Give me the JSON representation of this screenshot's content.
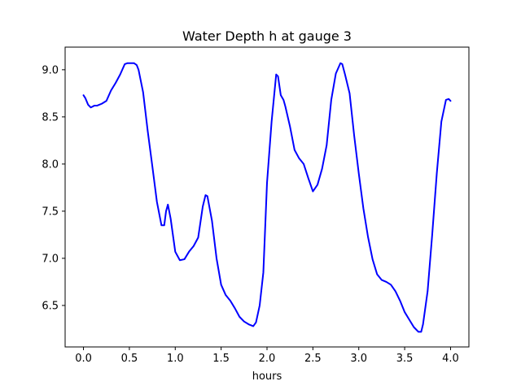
{
  "chart_data": {
    "type": "line",
    "title": "Water Depth h at gauge 3",
    "xlabel": "hours",
    "ylabel": "",
    "xlim": [
      -0.2,
      4.2
    ],
    "ylim": [
      6.06,
      9.24
    ],
    "xticks": [
      0.0,
      0.5,
      1.0,
      1.5,
      2.0,
      2.5,
      3.0,
      3.5,
      4.0
    ],
    "xtick_labels": [
      "0.0",
      "0.5",
      "1.0",
      "1.5",
      "2.0",
      "2.5",
      "3.0",
      "3.5",
      "4.0"
    ],
    "yticks": [
      6.5,
      7.0,
      7.5,
      8.0,
      8.5,
      9.0
    ],
    "ytick_labels": [
      "6.5",
      "7.0",
      "7.5",
      "8.0",
      "8.5",
      "9.0"
    ],
    "grid": false,
    "legend": "none",
    "series": [
      {
        "color": "#0000ff",
        "x": [
          0.0,
          0.02,
          0.05,
          0.08,
          0.1,
          0.12,
          0.15,
          0.2,
          0.25,
          0.3,
          0.35,
          0.4,
          0.45,
          0.48,
          0.5,
          0.55,
          0.58,
          0.6,
          0.65,
          0.7,
          0.75,
          0.8,
          0.85,
          0.88,
          0.9,
          0.92,
          0.95,
          0.98,
          1.0,
          1.05,
          1.1,
          1.15,
          1.2,
          1.25,
          1.3,
          1.33,
          1.35,
          1.4,
          1.45,
          1.5,
          1.55,
          1.6,
          1.65,
          1.7,
          1.75,
          1.8,
          1.85,
          1.88,
          1.92,
          1.96,
          2.0,
          2.05,
          2.1,
          2.12,
          2.15,
          2.18,
          2.2,
          2.25,
          2.3,
          2.35,
          2.4,
          2.45,
          2.5,
          2.55,
          2.6,
          2.65,
          2.7,
          2.75,
          2.8,
          2.82,
          2.85,
          2.9,
          2.95,
          3.0,
          3.05,
          3.1,
          3.15,
          3.2,
          3.25,
          3.3,
          3.35,
          3.4,
          3.45,
          3.5,
          3.55,
          3.6,
          3.65,
          3.68,
          3.7,
          3.75,
          3.8,
          3.85,
          3.9,
          3.95,
          3.98,
          4.0
        ],
        "y": [
          8.73,
          8.7,
          8.63,
          8.6,
          8.61,
          8.62,
          8.62,
          8.64,
          8.67,
          8.78,
          8.86,
          8.95,
          9.06,
          9.07,
          9.07,
          9.07,
          9.05,
          9.0,
          8.76,
          8.35,
          7.98,
          7.6,
          7.35,
          7.35,
          7.5,
          7.57,
          7.42,
          7.21,
          7.07,
          6.98,
          6.99,
          7.07,
          7.13,
          7.22,
          7.55,
          7.67,
          7.66,
          7.4,
          7.0,
          6.72,
          6.61,
          6.55,
          6.47,
          6.38,
          6.33,
          6.3,
          6.28,
          6.32,
          6.5,
          6.85,
          7.8,
          8.45,
          8.95,
          8.93,
          8.73,
          8.68,
          8.61,
          8.4,
          8.15,
          8.06,
          8.0,
          7.85,
          7.71,
          7.78,
          7.95,
          8.2,
          8.68,
          8.96,
          9.07,
          9.06,
          8.95,
          8.75,
          8.3,
          7.9,
          7.53,
          7.23,
          6.99,
          6.83,
          6.77,
          6.75,
          6.72,
          6.65,
          6.55,
          6.43,
          6.35,
          6.27,
          6.22,
          6.22,
          6.3,
          6.65,
          7.25,
          7.9,
          8.45,
          8.68,
          8.69,
          8.67
        ]
      }
    ]
  }
}
